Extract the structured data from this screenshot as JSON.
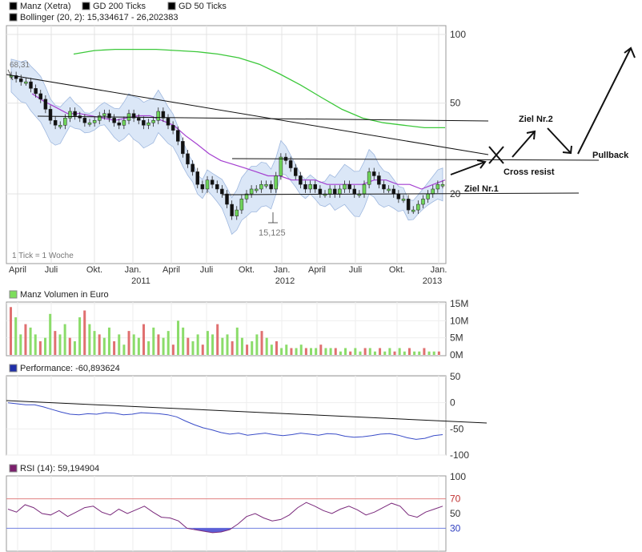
{
  "chart_data": [
    {
      "type": "line",
      "title": "",
      "legend": [
        {
          "label": "Manz (Xetra)",
          "color": "#7dde5c"
        },
        {
          "label": "GD 200 Ticks",
          "color": "#27c022"
        },
        {
          "label": "GD 50 Ticks",
          "color": "#9b2fd1"
        },
        {
          "label": "Bollinger (20, 2): 15,334617 - 26,202383",
          "color": "#b7cdee"
        }
      ],
      "y_scale": "log",
      "ylim": [
        12,
        100
      ],
      "y_ticks": [
        "100",
        "50",
        "20"
      ],
      "x_ticks": [
        "April",
        "Juli",
        "Okt.",
        "Jan.",
        "April",
        "Juli",
        "Okt.",
        "Jan.",
        "April",
        "Juli",
        "Okt.",
        "Jan."
      ],
      "year_labels": [
        "2011",
        "2012",
        "2013"
      ],
      "note": "1 Tick = 1 Woche",
      "high_label": "68,31",
      "low_label": "15,125",
      "grid": true,
      "series": [
        {
          "name": "Manz (Xetra)",
          "values": [
            66,
            64,
            62,
            62,
            58,
            55,
            52,
            47,
            42,
            40,
            40,
            43,
            46,
            44,
            43,
            41,
            41,
            42,
            44,
            45,
            43,
            41,
            40,
            42,
            45,
            43,
            42,
            40,
            41,
            42,
            46,
            43,
            40,
            38,
            34,
            30,
            27,
            25,
            22,
            21,
            23,
            22,
            21,
            20,
            18,
            16,
            17,
            19,
            20,
            21,
            21,
            22,
            22,
            21,
            24,
            29,
            28,
            26,
            24,
            22,
            21,
            22,
            21,
            20,
            20,
            21,
            20,
            21,
            22,
            21,
            20,
            20,
            22,
            25,
            24,
            22,
            21,
            21,
            20,
            19,
            19,
            17,
            17,
            18,
            19,
            20,
            21,
            22,
            22
          ]
        },
        {
          "name": "GD 200 Ticks",
          "values": [
            82,
            85,
            86,
            86,
            86,
            85,
            84,
            82,
            79,
            74,
            67,
            60,
            53,
            47,
            43,
            41,
            40,
            39,
            39
          ]
        },
        {
          "name": "GD 50 Ticks",
          "values": [
            55,
            51,
            48,
            45,
            45,
            44,
            43,
            42,
            43,
            44,
            44,
            42,
            40,
            36,
            33,
            30,
            28,
            27,
            26,
            25,
            24,
            24,
            23,
            23,
            23,
            22,
            22,
            22,
            22,
            23,
            23,
            22,
            22,
            21,
            22,
            23
          ]
        }
      ],
      "drawings": [
        "Cross resist",
        "Ziel Nr.2",
        "Pullback",
        "Ziel Nr.1"
      ]
    },
    {
      "type": "bar",
      "title": "Manz Volumen in Euro",
      "legend_color": "#7dde5c",
      "y_ticks": [
        "15M",
        "10M",
        "5M",
        "0M"
      ],
      "ylim": [
        0,
        15000000
      ],
      "values": [
        14,
        11,
        6,
        9,
        8,
        6,
        4,
        5,
        12,
        7,
        6,
        9,
        5,
        4,
        11,
        13,
        9,
        7,
        6,
        5,
        8,
        4,
        6,
        3,
        7,
        6,
        5,
        9,
        4,
        8,
        6,
        5,
        7,
        3,
        10,
        8,
        5,
        4,
        6,
        3,
        7,
        6,
        9,
        5,
        6,
        4,
        8,
        5,
        3,
        4,
        6,
        7,
        5,
        3,
        4,
        2,
        3,
        2,
        2,
        3,
        2,
        2,
        2,
        3,
        2,
        2,
        2,
        1,
        2,
        1,
        2,
        1,
        2,
        2,
        1,
        2,
        1,
        2,
        1,
        2,
        1,
        2,
        1,
        1,
        2,
        1,
        1,
        1
      ],
      "values_unit": "M"
    },
    {
      "type": "line",
      "title": "Performance: -60,893624",
      "legend_color": "#1f2fa8",
      "y_ticks": [
        "50",
        "0",
        "-50",
        "-100"
      ],
      "ylim": [
        -100,
        50
      ],
      "values": [
        0,
        -2,
        -4,
        -4,
        -8,
        -13,
        -18,
        -22,
        -23,
        -21,
        -22,
        -19,
        -20,
        -23,
        -22,
        -19,
        -20,
        -21,
        -23,
        -27,
        -35,
        -42,
        -48,
        -52,
        -57,
        -60,
        -58,
        -62,
        -60,
        -58,
        -61,
        -63,
        -61,
        -58,
        -60,
        -62,
        -59,
        -60,
        -64,
        -66,
        -65,
        -63,
        -60,
        -59,
        -62,
        -67,
        -70,
        -68,
        -63,
        -61
      ]
    },
    {
      "type": "line",
      "title": "RSI (14): 59,194904",
      "legend_color": "#7a1f6c",
      "y_ticks": [
        "100",
        "70",
        "50",
        "30"
      ],
      "ylim": [
        0,
        100
      ],
      "reference_lines": [
        70,
        30
      ],
      "values": [
        56,
        52,
        62,
        58,
        50,
        48,
        54,
        46,
        52,
        58,
        60,
        52,
        48,
        56,
        50,
        55,
        60,
        52,
        45,
        44,
        40,
        30,
        28,
        26,
        24,
        25,
        28,
        36,
        46,
        50,
        44,
        40,
        42,
        48,
        58,
        65,
        60,
        54,
        50,
        56,
        60,
        55,
        48,
        52,
        58,
        64,
        60,
        48,
        45,
        52,
        56,
        60
      ]
    }
  ]
}
